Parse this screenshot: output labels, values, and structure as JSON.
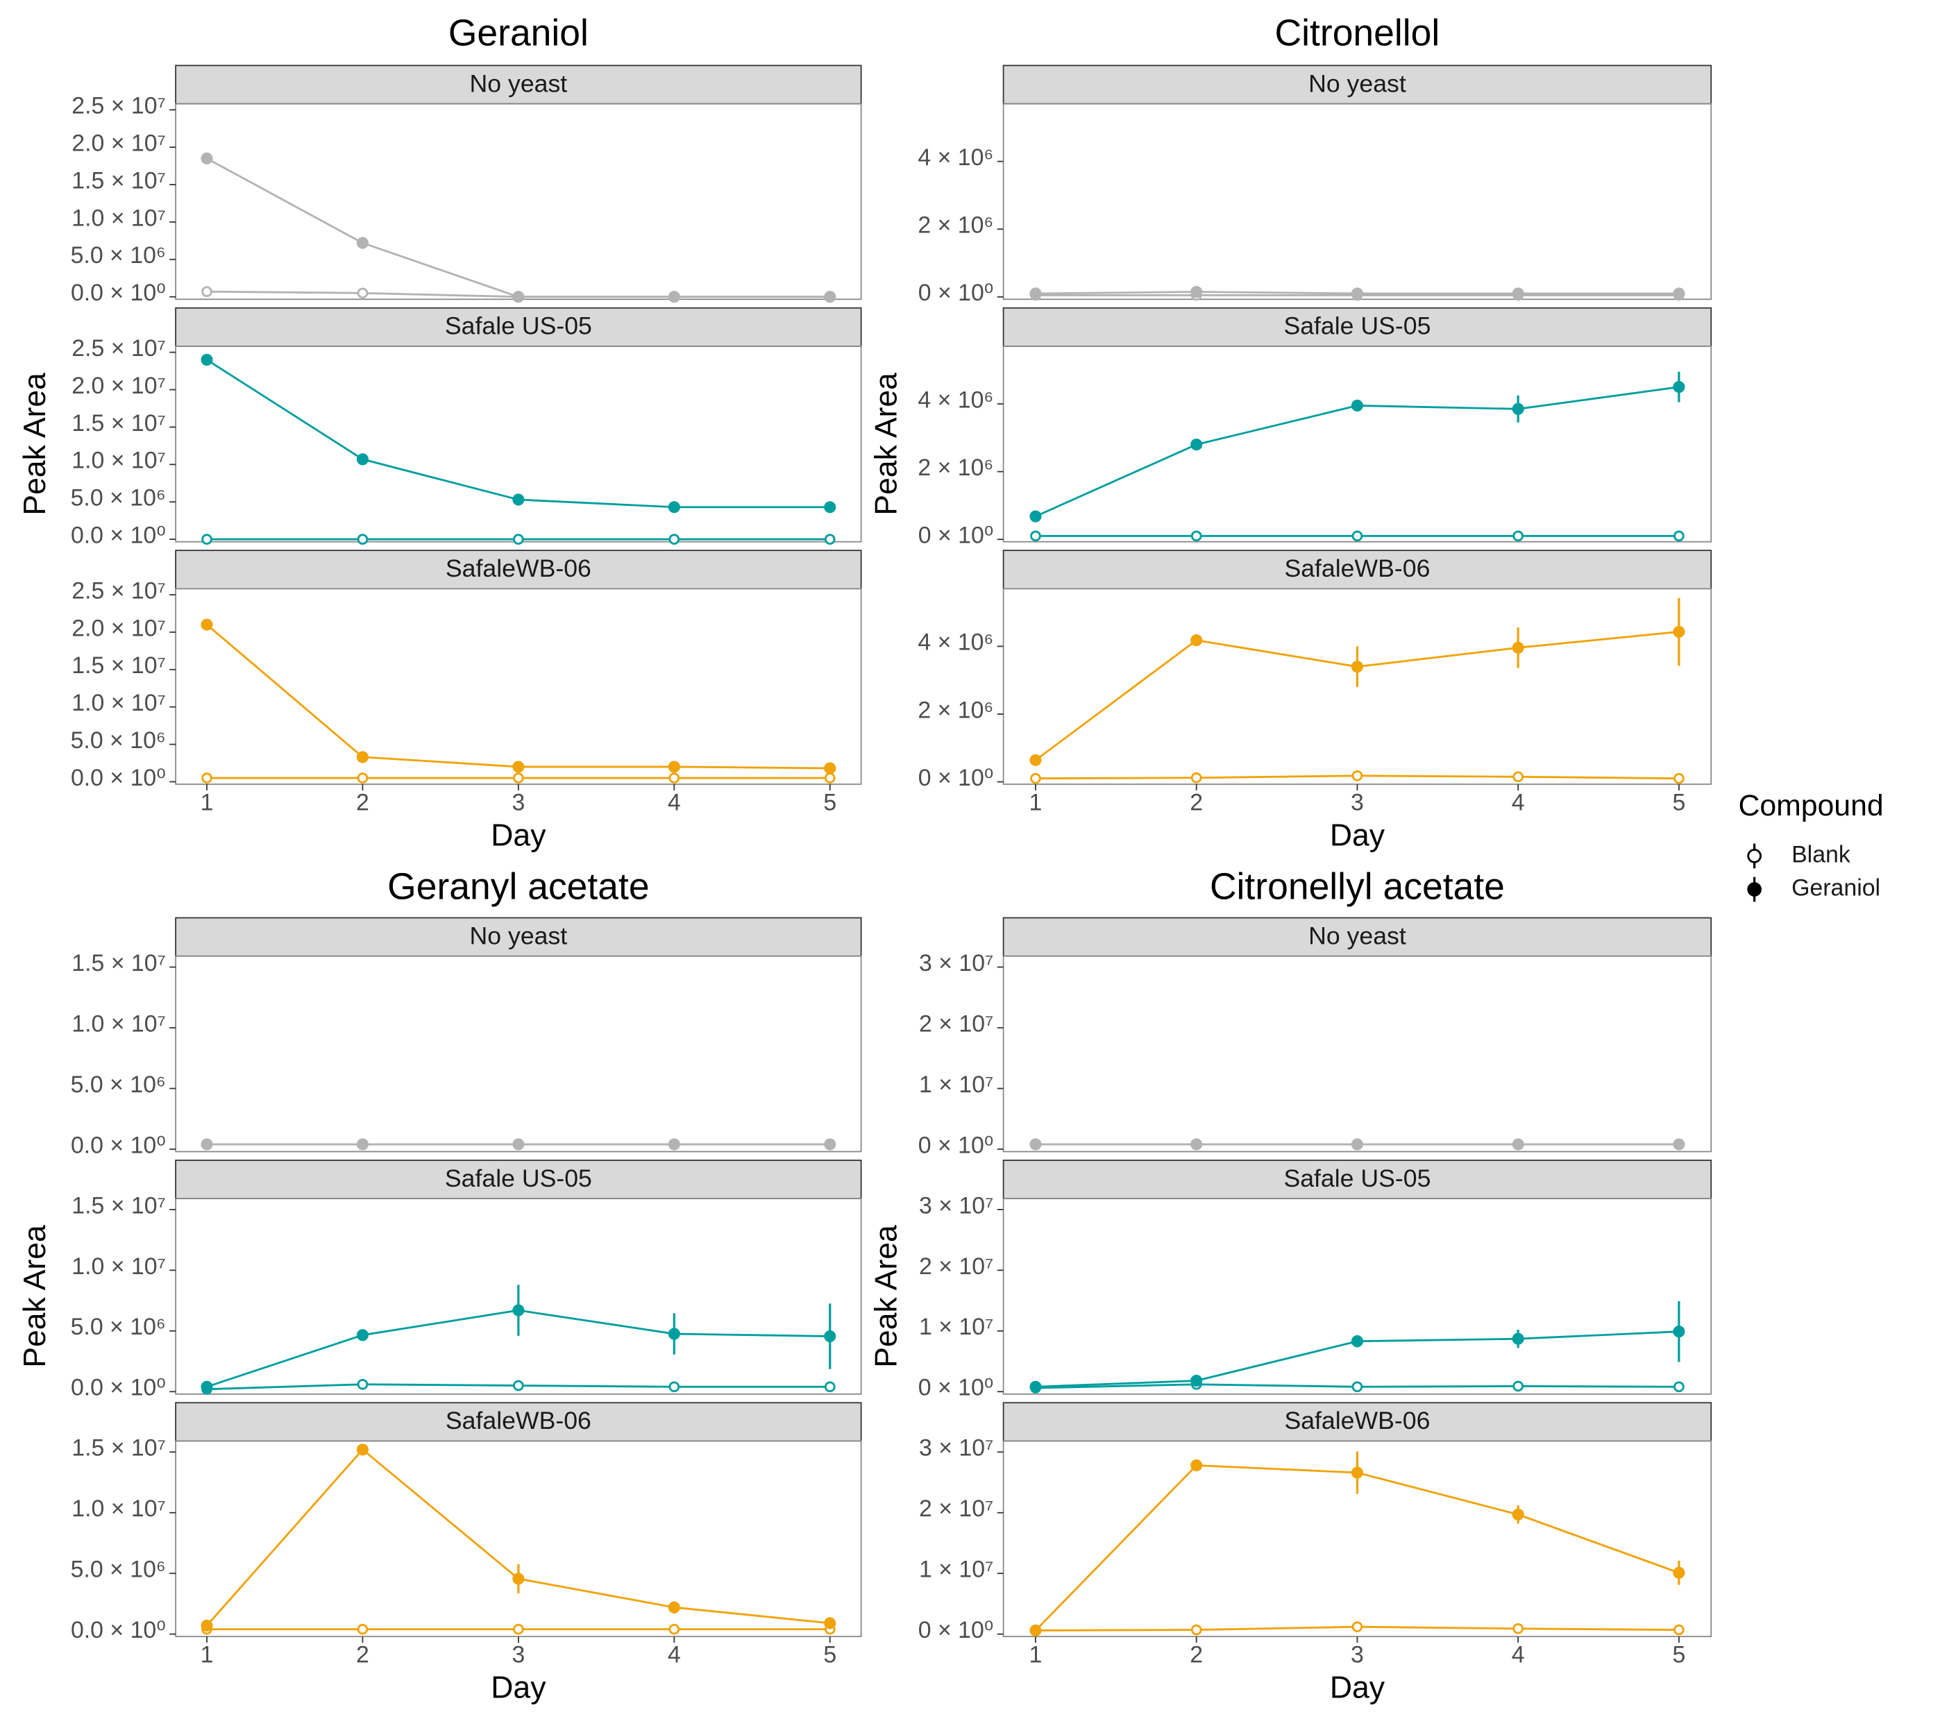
{
  "legend_title": "Compound",
  "chart_data": [
    {
      "type": "line",
      "title": "Geraniol",
      "xlabel": "Day",
      "ylabel": "Peak Area",
      "x": [
        1,
        2,
        3,
        4,
        5
      ],
      "xlim": [
        0.8,
        5.2
      ],
      "xticks": [
        1,
        2,
        3,
        4,
        5
      ],
      "ylim": [
        -330000,
        25800000
      ],
      "yticks": [
        {
          "value": 0,
          "label": "0.0 × 10⁰"
        },
        {
          "value": 5000000,
          "label": "5.0 × 10⁶"
        },
        {
          "value": 10000000,
          "label": "1.0 × 10⁷"
        },
        {
          "value": 15000000,
          "label": "1.5 × 10⁷"
        },
        {
          "value": 20000000,
          "label": "2.0 × 10⁷"
        },
        {
          "value": 25000000,
          "label": "2.5 × 10⁷"
        }
      ],
      "facets": [
        {
          "name": "No yeast",
          "series": [
            {
              "name": "Blank",
              "color": "#b3b3b3",
              "marker": "open",
              "values": [
                700000,
                500000,
                0,
                0,
                0
              ]
            },
            {
              "name": "Geraniol",
              "color": "#b3b3b3",
              "marker": "filled",
              "values": [
                18500000,
                7200000,
                0,
                0,
                0
              ],
              "errors": [
                200000,
                200000,
                0,
                0,
                0
              ]
            }
          ]
        },
        {
          "name": "Safale US-05",
          "series": [
            {
              "name": "Blank",
              "color": "#009e9e",
              "marker": "open",
              "values": [
                0,
                0,
                0,
                0,
                0
              ]
            },
            {
              "name": "Geraniol",
              "color": "#009e9e",
              "marker": "filled",
              "values": [
                24000000,
                10700000,
                5300000,
                4300000,
                4300000
              ],
              "errors": [
                200000,
                200000,
                800000,
                200000,
                200000
              ]
            }
          ]
        },
        {
          "name": "SafaleWB-06",
          "series": [
            {
              "name": "Blank",
              "color": "#f0a30a",
              "marker": "open",
              "values": [
                500000,
                500000,
                500000,
                500000,
                500000
              ]
            },
            {
              "name": "Geraniol",
              "color": "#f0a30a",
              "marker": "filled",
              "values": [
                21000000,
                3300000,
                2000000,
                2000000,
                1800000
              ],
              "errors": [
                200000,
                200000,
                300000,
                300000,
                200000
              ]
            }
          ]
        }
      ]
    },
    {
      "type": "line",
      "title": "Citronellol",
      "xlabel": "Day",
      "ylabel": "Peak Area",
      "x": [
        1,
        2,
        3,
        4,
        5
      ],
      "xlim": [
        0.8,
        5.2
      ],
      "xticks": [
        1,
        2,
        3,
        4,
        5
      ],
      "ylim": [
        -70000,
        5700000
      ],
      "yticks": [
        {
          "value": 0,
          "label": "0 × 10⁰"
        },
        {
          "value": 2000000,
          "label": "2 × 10⁶"
        },
        {
          "value": 4000000,
          "label": "4 × 10⁶"
        }
      ],
      "facets": [
        {
          "name": "No yeast",
          "series": [
            {
              "name": "Blank",
              "color": "#b3b3b3",
              "marker": "open",
              "values": [
                50000,
                50000,
                50000,
                50000,
                50000
              ]
            },
            {
              "name": "Geraniol",
              "color": "#b3b3b3",
              "marker": "filled",
              "values": [
                100000,
                150000,
                100000,
                100000,
                100000
              ],
              "errors": [
                20000,
                50000,
                20000,
                20000,
                20000
              ]
            }
          ]
        },
        {
          "name": "Safale US-05",
          "series": [
            {
              "name": "Blank",
              "color": "#009e9e",
              "marker": "open",
              "values": [
                100000,
                100000,
                100000,
                100000,
                100000
              ]
            },
            {
              "name": "Geraniol",
              "color": "#009e9e",
              "marker": "filled",
              "values": [
                680000,
                2800000,
                3950000,
                3850000,
                4500000
              ],
              "errors": [
                30000,
                50000,
                150000,
                400000,
                450000
              ]
            }
          ]
        },
        {
          "name": "SafaleWB-06",
          "series": [
            {
              "name": "Blank",
              "color": "#f0a30a",
              "marker": "open",
              "values": [
                100000,
                120000,
                180000,
                150000,
                100000
              ]
            },
            {
              "name": "Geraniol",
              "color": "#f0a30a",
              "marker": "filled",
              "values": [
                640000,
                4180000,
                3400000,
                3960000,
                4430000
              ],
              "errors": [
                30000,
                60000,
                600000,
                600000,
                1000000
              ]
            }
          ]
        }
      ]
    },
    {
      "type": "line",
      "title": "Geranyl acetate",
      "xlabel": "Day",
      "ylabel": "Peak Area",
      "x": [
        1,
        2,
        3,
        4,
        5
      ],
      "xlim": [
        0.8,
        5.2
      ],
      "xticks": [
        1,
        2,
        3,
        4,
        5
      ],
      "ylim": [
        -200000,
        15900000
      ],
      "yticks": [
        {
          "value": 0,
          "label": "0.0 × 10⁰"
        },
        {
          "value": 5000000,
          "label": "5.0 × 10⁶"
        },
        {
          "value": 10000000,
          "label": "1.0 × 10⁷"
        },
        {
          "value": 15000000,
          "label": "1.5 × 10⁷"
        }
      ],
      "facets": [
        {
          "name": "No yeast",
          "series": [
            {
              "name": "Blank",
              "color": "#b3b3b3",
              "marker": "open",
              "values": [
                400000,
                400000,
                400000,
                400000,
                400000
              ]
            },
            {
              "name": "Geraniol",
              "color": "#b3b3b3",
              "marker": "filled",
              "values": [
                400000,
                400000,
                400000,
                400000,
                400000
              ],
              "errors": [
                20000,
                20000,
                20000,
                20000,
                20000
              ]
            }
          ]
        },
        {
          "name": "Safale US-05",
          "series": [
            {
              "name": "Blank",
              "color": "#009e9e",
              "marker": "open",
              "values": [
                200000,
                600000,
                500000,
                400000,
                400000
              ]
            },
            {
              "name": "Geraniol",
              "color": "#009e9e",
              "marker": "filled",
              "values": [
                400000,
                4660000,
                6700000,
                4760000,
                4560000
              ],
              "errors": [
                50000,
                200000,
                2100000,
                1700000,
                2700000
              ]
            }
          ]
        },
        {
          "name": "SafaleWB-06",
          "series": [
            {
              "name": "Blank",
              "color": "#f0a30a",
              "marker": "open",
              "values": [
                400000,
                400000,
                400000,
                400000,
                400000
              ]
            },
            {
              "name": "Geraniol",
              "color": "#f0a30a",
              "marker": "filled",
              "values": [
                700000,
                15200000,
                4560000,
                2200000,
                900000
              ],
              "errors": [
                100000,
                200000,
                1200000,
                500000,
                100000
              ]
            }
          ]
        }
      ]
    },
    {
      "type": "line",
      "title": "Citronellyl acetate",
      "xlabel": "Day",
      "ylabel": "Peak Area",
      "x": [
        1,
        2,
        3,
        4,
        5
      ],
      "xlim": [
        0.8,
        5.2
      ],
      "xticks": [
        1,
        2,
        3,
        4,
        5
      ],
      "ylim": [
        -400000,
        31800000
      ],
      "yticks": [
        {
          "value": 0,
          "label": "0 × 10⁰"
        },
        {
          "value": 10000000,
          "label": "1 × 10⁷"
        },
        {
          "value": 20000000,
          "label": "2 × 10⁷"
        },
        {
          "value": 30000000,
          "label": "3 × 10⁷"
        }
      ],
      "facets": [
        {
          "name": "No yeast",
          "series": [
            {
              "name": "Blank",
              "color": "#b3b3b3",
              "marker": "open",
              "values": [
                800000,
                800000,
                800000,
                800000,
                800000
              ]
            },
            {
              "name": "Geraniol",
              "color": "#b3b3b3",
              "marker": "filled",
              "values": [
                800000,
                800000,
                800000,
                800000,
                800000
              ],
              "errors": [
                50000,
                50000,
                50000,
                50000,
                50000
              ]
            }
          ]
        },
        {
          "name": "Safale US-05",
          "series": [
            {
              "name": "Blank",
              "color": "#009e9e",
              "marker": "open",
              "values": [
                600000,
                1200000,
                800000,
                900000,
                800000
              ]
            },
            {
              "name": "Geraniol",
              "color": "#009e9e",
              "marker": "filled",
              "values": [
                800000,
                1800000,
                8300000,
                8700000,
                9900000
              ],
              "errors": [
                100000,
                200000,
                1000000,
                1500000,
                5000000
              ]
            }
          ]
        },
        {
          "name": "SafaleWB-06",
          "series": [
            {
              "name": "Blank",
              "color": "#f0a30a",
              "marker": "open",
              "values": [
                600000,
                700000,
                1200000,
                900000,
                700000
              ]
            },
            {
              "name": "Geraniol",
              "color": "#f0a30a",
              "marker": "filled",
              "values": [
                600000,
                27800000,
                26600000,
                19700000,
                10100000
              ],
              "errors": [
                100000,
                300000,
                3500000,
                1500000,
                2000000
              ]
            }
          ]
        }
      ]
    }
  ]
}
